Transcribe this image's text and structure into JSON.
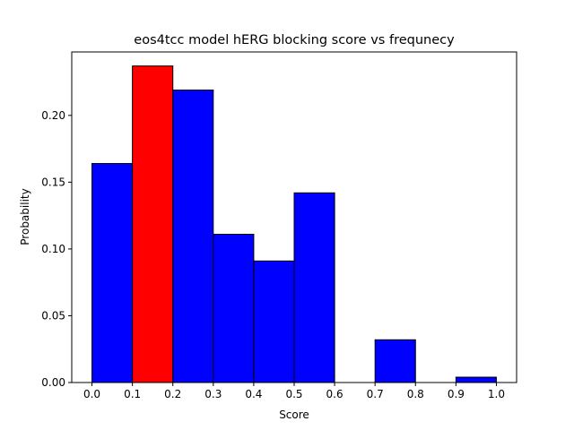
{
  "chart_data": {
    "type": "bar",
    "title": "eos4tcc model hERG blocking score vs frequnecy",
    "xlabel": "Score",
    "ylabel": "Probability",
    "xlim": [
      -0.05,
      1.05
    ],
    "ylim": [
      0,
      0.2475
    ],
    "grid": false,
    "x_ticks": [
      "0.0",
      "0.1",
      "0.2",
      "0.3",
      "0.4",
      "0.5",
      "0.6",
      "0.7",
      "0.8",
      "0.9",
      "1.0"
    ],
    "y_ticks": [
      "0.00",
      "0.05",
      "0.10",
      "0.15",
      "0.20"
    ],
    "bins": [
      {
        "start": 0.0,
        "end": 0.1,
        "value": 0.164,
        "color": "#0000ff"
      },
      {
        "start": 0.1,
        "end": 0.2,
        "value": 0.237,
        "color": "#ff0000"
      },
      {
        "start": 0.2,
        "end": 0.3,
        "value": 0.219,
        "color": "#0000ff"
      },
      {
        "start": 0.3,
        "end": 0.4,
        "value": 0.111,
        "color": "#0000ff"
      },
      {
        "start": 0.4,
        "end": 0.5,
        "value": 0.091,
        "color": "#0000ff"
      },
      {
        "start": 0.5,
        "end": 0.6,
        "value": 0.142,
        "color": "#0000ff"
      },
      {
        "start": 0.6,
        "end": 0.7,
        "value": 0.0,
        "color": "#0000ff"
      },
      {
        "start": 0.7,
        "end": 0.8,
        "value": 0.032,
        "color": "#0000ff"
      },
      {
        "start": 0.8,
        "end": 0.9,
        "value": 0.0,
        "color": "#0000ff"
      },
      {
        "start": 0.9,
        "end": 1.0,
        "value": 0.004,
        "color": "#0000ff"
      }
    ]
  }
}
